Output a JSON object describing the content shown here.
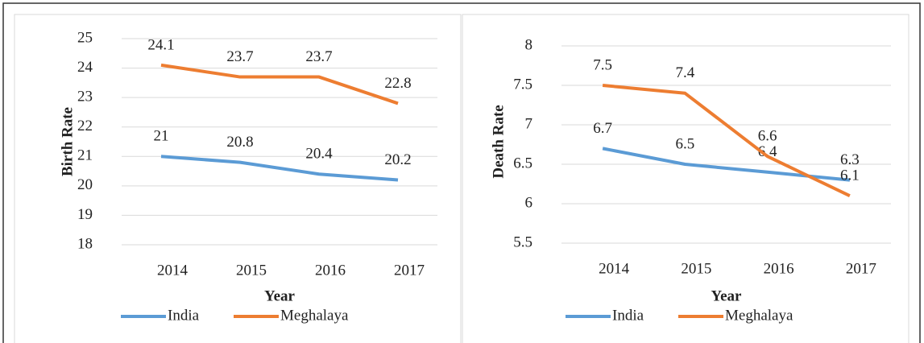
{
  "chart_data": [
    {
      "type": "line",
      "ylabel": "Birth Rate",
      "xlabel": "Year",
      "categories": [
        "2014",
        "2015",
        "2016",
        "2017"
      ],
      "series": [
        {
          "name": "India",
          "color": "#5b9bd5",
          "values": [
            21,
            20.8,
            20.4,
            20.2
          ]
        },
        {
          "name": "Meghalaya",
          "color": "#ed7d31",
          "values": [
            24.1,
            23.7,
            23.7,
            22.8
          ]
        }
      ],
      "ylim": [
        18,
        25
      ],
      "yticks": [
        18,
        19,
        20,
        21,
        22,
        23,
        24,
        25
      ],
      "grid": true,
      "legend": "bottom"
    },
    {
      "type": "line",
      "ylabel": "Death Rate",
      "xlabel": "Year",
      "categories": [
        "2014",
        "2015",
        "2016",
        "2017"
      ],
      "series": [
        {
          "name": "India",
          "color": "#5b9bd5",
          "values": [
            6.7,
            6.5,
            6.4,
            6.3
          ]
        },
        {
          "name": "Meghalaya",
          "color": "#ed7d31",
          "values": [
            7.5,
            7.4,
            6.6,
            6.1
          ]
        }
      ],
      "ylim": [
        5.5,
        8
      ],
      "yticks": [
        5.5,
        6,
        6.5,
        7,
        7.5,
        8
      ],
      "grid": true,
      "legend": "bottom"
    }
  ]
}
